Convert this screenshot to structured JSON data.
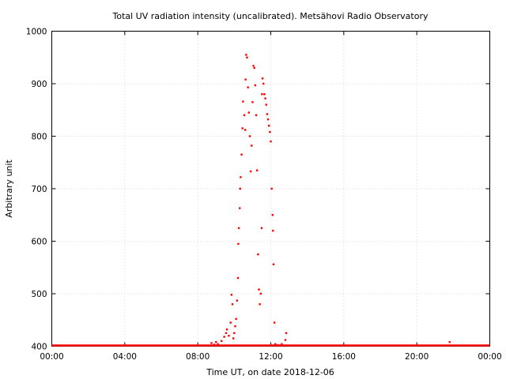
{
  "chart_data": {
    "type": "scatter",
    "title": "Total UV radiation intensity (uncalibrated). Metsähovi Radio Observatory",
    "xlabel": "Time UT, on date 2018-12-06",
    "ylabel": "Arbitrary unit",
    "x_unit": "hours UT",
    "xlim": [
      0,
      24
    ],
    "ylim": [
      400,
      1000
    ],
    "x_ticks": [
      0,
      4,
      8,
      12,
      16,
      20,
      24
    ],
    "x_tick_labels": [
      "00:00",
      "04:00",
      "08:00",
      "12:00",
      "16:00",
      "20:00",
      "00:00"
    ],
    "y_ticks": [
      400,
      500,
      600,
      700,
      800,
      900,
      1000
    ],
    "y_tick_labels": [
      "400",
      "500",
      "600",
      "700",
      "800",
      "900",
      "1000"
    ],
    "grid": true,
    "series": [
      {
        "color": "#ff0000",
        "baseline": {
          "x_start": 0,
          "x_end": 24,
          "y": 400
        },
        "points": [
          [
            8.75,
            406
          ],
          [
            8.9,
            403
          ],
          [
            9.0,
            408
          ],
          [
            9.1,
            404
          ],
          [
            9.3,
            410
          ],
          [
            9.45,
            418
          ],
          [
            9.55,
            425
          ],
          [
            9.6,
            432
          ],
          [
            9.7,
            420
          ],
          [
            9.8,
            445
          ],
          [
            9.85,
            498
          ],
          [
            9.9,
            480
          ],
          [
            9.95,
            415
          ],
          [
            10.0,
            425
          ],
          [
            10.05,
            438
          ],
          [
            10.1,
            452
          ],
          [
            10.15,
            487
          ],
          [
            10.2,
            530
          ],
          [
            10.22,
            595
          ],
          [
            10.25,
            625
          ],
          [
            10.3,
            663
          ],
          [
            10.32,
            700
          ],
          [
            10.35,
            722
          ],
          [
            10.4,
            765
          ],
          [
            10.45,
            815
          ],
          [
            10.48,
            866
          ],
          [
            10.55,
            840
          ],
          [
            10.6,
            812
          ],
          [
            10.62,
            908
          ],
          [
            10.65,
            955
          ],
          [
            10.7,
            950
          ],
          [
            10.75,
            893
          ],
          [
            10.8,
            845
          ],
          [
            10.85,
            800
          ],
          [
            10.9,
            733
          ],
          [
            10.95,
            782
          ],
          [
            11.0,
            865
          ],
          [
            11.05,
            934
          ],
          [
            11.1,
            930
          ],
          [
            11.15,
            897
          ],
          [
            11.2,
            840
          ],
          [
            11.25,
            735
          ],
          [
            11.3,
            575
          ],
          [
            11.35,
            508
          ],
          [
            11.4,
            480
          ],
          [
            11.45,
            500
          ],
          [
            11.5,
            625
          ],
          [
            11.52,
            880
          ],
          [
            11.55,
            910
          ],
          [
            11.6,
            900
          ],
          [
            11.65,
            880
          ],
          [
            11.7,
            872
          ],
          [
            11.75,
            860
          ],
          [
            11.8,
            842
          ],
          [
            11.85,
            832
          ],
          [
            11.9,
            820
          ],
          [
            11.95,
            808
          ],
          [
            12.0,
            790
          ],
          [
            12.05,
            700
          ],
          [
            12.1,
            650
          ],
          [
            12.12,
            620
          ],
          [
            12.15,
            556
          ],
          [
            12.2,
            445
          ],
          [
            12.25,
            404
          ],
          [
            12.4,
            402
          ],
          [
            12.6,
            404
          ],
          [
            12.8,
            412
          ],
          [
            12.85,
            425
          ],
          [
            21.8,
            408
          ]
        ]
      }
    ]
  }
}
